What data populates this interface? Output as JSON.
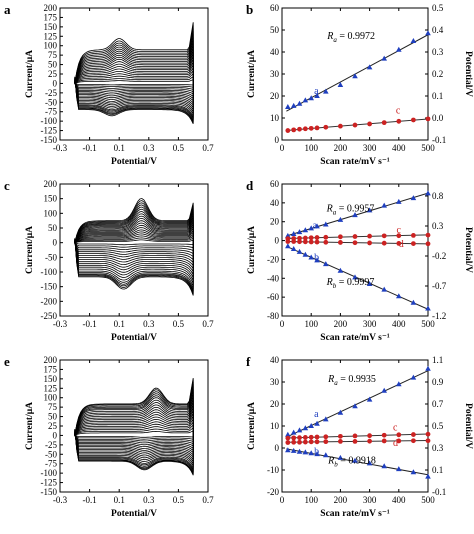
{
  "figure": {
    "colors": {
      "axis": "#000000",
      "blue": "#1f3fbf",
      "red": "#cc2222",
      "cv": "#000000"
    }
  },
  "chart_data": [
    {
      "id": "a",
      "panel_label": "a",
      "type": "line",
      "xlabel": "Potential/V",
      "ylabel": "Current/μA",
      "xlim": [
        -0.3,
        0.7
      ],
      "ylim": [
        -150,
        200
      ],
      "xticks": [
        "-0.3",
        "-0.1",
        "0.1",
        "0.3",
        "0.5",
        "0.7"
      ],
      "yticks": [
        "-150",
        "-125",
        "-100",
        "-75",
        "-50",
        "-25",
        "0",
        "25",
        "50",
        "75",
        "100",
        "125",
        "150",
        "175",
        "200"
      ],
      "curves": {
        "count": 20,
        "e_start": -0.2,
        "e_end": 0.6,
        "anodic_peak_E": 0.1,
        "cathodic_peak_E": 0.05,
        "top_max": [
          10,
          18,
          26,
          34,
          42,
          50,
          58,
          66,
          74,
          82,
          90,
          98,
          106,
          114,
          122,
          130,
          138,
          146,
          154,
          162
        ],
        "anodic_peak_height": [
          2,
          3,
          5,
          7,
          9,
          11,
          13,
          15,
          17,
          19,
          20,
          21,
          22,
          23,
          24,
          25,
          26,
          27,
          28,
          30
        ],
        "bottom_min": [
          -5,
          -12,
          -19,
          -26,
          -33,
          -40,
          -47,
          -54,
          -61,
          -68,
          -75,
          -82,
          -89,
          -96,
          -103,
          -108,
          -113,
          -118,
          -122,
          -126
        ]
      }
    },
    {
      "id": "b",
      "panel_label": "b",
      "type": "scatter",
      "xlabel": "Scan rate/mV s⁻¹",
      "ylabel": "Current/μA",
      "y2label": "Potential/V",
      "xlim": [
        0,
        500
      ],
      "ylim": [
        0,
        60
      ],
      "y2lim": [
        -0.1,
        0.5
      ],
      "xticks": [
        "0",
        "100",
        "200",
        "300",
        "400",
        "500"
      ],
      "yticks": [
        "0",
        "10",
        "20",
        "30",
        "40",
        "50",
        "60"
      ],
      "y2ticks": [
        "-0.1",
        "0.0",
        "0.1",
        "0.2",
        "0.3",
        "0.4",
        "0.5"
      ],
      "annotations": [
        {
          "text": "R",
          "sub": "a",
          "value": "= 0.9972"
        }
      ],
      "series_labels": [
        {
          "text": "a",
          "color": "#1f3fbf"
        },
        {
          "text": "c",
          "color": "#cc2222"
        }
      ],
      "series": [
        {
          "marker": "triangle",
          "color": "#1f3fbf",
          "axis": "left",
          "x": [
            20,
            40,
            60,
            80,
            100,
            120,
            150,
            200,
            250,
            300,
            350,
            400,
            450,
            500
          ],
          "y": [
            15,
            15.5,
            16.5,
            18,
            19,
            20,
            22,
            25,
            29,
            33,
            37,
            41,
            45,
            48.5
          ]
        },
        {
          "marker": "circle",
          "color": "#cc2222",
          "axis": "left",
          "x": [
            20,
            40,
            60,
            80,
            100,
            120,
            150,
            200,
            250,
            300,
            350,
            400,
            450,
            500
          ],
          "y": [
            4.3,
            4.6,
            4.9,
            5.1,
            5.3,
            5.5,
            5.8,
            6.3,
            6.8,
            7.3,
            7.9,
            8.5,
            9.1,
            9.6
          ]
        }
      ]
    },
    {
      "id": "c",
      "panel_label": "c",
      "type": "line",
      "xlabel": "Potential/V",
      "ylabel": "Current/μA",
      "xlim": [
        -0.3,
        0.7
      ],
      "ylim": [
        -250,
        200
      ],
      "xticks": [
        "-0.3",
        "-0.1",
        "0.1",
        "0.3",
        "0.5",
        "0.7"
      ],
      "yticks": [
        "-250",
        "-200",
        "-150",
        "-100",
        "-50",
        "0",
        "50",
        "100",
        "150",
        "200"
      ],
      "curves": {
        "count": 20,
        "e_start": -0.2,
        "e_end": 0.6,
        "anodic_peak_E": 0.25,
        "cathodic_peak_E": 0.13,
        "top_max": [
          8,
          15,
          22,
          29,
          36,
          43,
          50,
          57,
          64,
          71,
          78,
          85,
          92,
          99,
          106,
          112,
          118,
          124,
          130,
          136
        ],
        "anodic_peak_height": [
          5,
          8,
          11,
          14,
          17,
          20,
          24,
          28,
          32,
          36,
          40,
          44,
          48,
          52,
          56,
          60,
          64,
          68,
          72,
          76
        ],
        "bottom_min": [
          -8,
          -20,
          -32,
          -44,
          -56,
          -68,
          -80,
          -92,
          -104,
          -116,
          -128,
          -140,
          -152,
          -164,
          -176,
          -186,
          -194,
          -200,
          -206,
          -212
        ]
      }
    },
    {
      "id": "d",
      "panel_label": "d",
      "type": "scatter",
      "xlabel": "Scan rate/mV s⁻¹",
      "ylabel": "Current/μA",
      "y2label": "Potential/V",
      "xlim": [
        0,
        500
      ],
      "ylim": [
        -80,
        60
      ],
      "y2lim": [
        -1.2,
        1.0
      ],
      "xticks": [
        "0",
        "100",
        "200",
        "300",
        "400",
        "500"
      ],
      "yticks": [
        "-80",
        "-60",
        "-40",
        "-20",
        "0",
        "20",
        "40",
        "60"
      ],
      "y2ticks": [
        "-1.2",
        "-0.7",
        "-0.2",
        "0.3",
        "0.8"
      ],
      "annotations": [
        {
          "text": "R",
          "sub": "a",
          "value": "= 0.9957"
        },
        {
          "text": "R",
          "sub": "b",
          "value": "= 0.9997"
        }
      ],
      "series_labels": [
        {
          "text": "a",
          "color": "#1f3fbf"
        },
        {
          "text": "c",
          "color": "#cc2222"
        },
        {
          "text": "b",
          "color": "#1f3fbf"
        },
        {
          "text": "d",
          "color": "#cc2222"
        }
      ],
      "series": [
        {
          "marker": "triangle",
          "color": "#1f3fbf",
          "axis": "left",
          "x": [
            20,
            40,
            60,
            80,
            100,
            120,
            150,
            200,
            250,
            300,
            350,
            400,
            450,
            500
          ],
          "y": [
            5,
            7,
            9,
            11,
            13,
            15,
            17,
            22,
            27,
            32,
            37,
            41,
            45,
            50
          ]
        },
        {
          "marker": "circle",
          "color": "#cc2222",
          "axis": "left",
          "x": [
            20,
            40,
            60,
            80,
            100,
            120,
            150,
            200,
            250,
            300,
            350,
            400,
            450,
            500
          ],
          "y": [
            2,
            2.2,
            2.5,
            2.7,
            3,
            3.2,
            3.5,
            4,
            4.3,
            4.7,
            5,
            5.2,
            5.5,
            5.8
          ]
        },
        {
          "marker": "triangle",
          "color": "#1f3fbf",
          "axis": "left",
          "x": [
            20,
            40,
            60,
            80,
            100,
            120,
            150,
            200,
            250,
            300,
            350,
            400,
            450,
            500
          ],
          "y": [
            -6,
            -9,
            -12,
            -15,
            -18,
            -21,
            -25,
            -32,
            -39,
            -46,
            -52,
            -59,
            -66,
            -72
          ]
        },
        {
          "marker": "circle",
          "color": "#cc2222",
          "axis": "left",
          "x": [
            20,
            40,
            60,
            80,
            100,
            120,
            150,
            200,
            250,
            300,
            350,
            400,
            450,
            500
          ],
          "y": [
            -1,
            -1,
            -1.2,
            -1.3,
            -1.5,
            -1.6,
            -1.8,
            -2,
            -2.3,
            -2.5,
            -2.8,
            -3,
            -3.2,
            -3.4
          ]
        }
      ]
    },
    {
      "id": "e",
      "panel_label": "e",
      "type": "line",
      "xlabel": "Potential/V",
      "ylabel": "Current/μA",
      "xlim": [
        -0.3,
        0.7
      ],
      "ylim": [
        -150,
        200
      ],
      "xticks": [
        "-0.3",
        "-0.1",
        "0.1",
        "0.3",
        "0.5",
        "0.7"
      ],
      "yticks": [
        "-150",
        "-125",
        "-100",
        "-75",
        "-50",
        "-25",
        "0",
        "25",
        "50",
        "75",
        "100",
        "125",
        "150",
        "175",
        "200"
      ],
      "curves": {
        "count": 20,
        "e_start": -0.2,
        "e_end": 0.6,
        "anodic_peak_E": 0.35,
        "cathodic_peak_E": 0.27,
        "top_max": [
          12,
          20,
          28,
          36,
          44,
          52,
          60,
          68,
          76,
          84,
          92,
          100,
          108,
          116,
          124,
          130,
          136,
          142,
          148,
          152
        ],
        "anodic_peak_height": [
          4,
          6,
          8,
          10,
          12,
          14,
          16,
          18,
          20,
          22,
          24,
          26,
          28,
          30,
          32,
          34,
          36,
          38,
          40,
          42
        ],
        "bottom_min": [
          -5,
          -12,
          -19,
          -26,
          -33,
          -40,
          -47,
          -54,
          -61,
          -68,
          -75,
          -82,
          -89,
          -96,
          -103,
          -108,
          -113,
          -118,
          -121,
          -124
        ]
      }
    },
    {
      "id": "f",
      "panel_label": "f",
      "type": "scatter",
      "xlabel": "Scan rate/mV s⁻¹",
      "ylabel": "Current/μA",
      "y2label": "Potential/V",
      "xlim": [
        0,
        500
      ],
      "ylim": [
        -20,
        40
      ],
      "y2lim": [
        -0.1,
        1.1
      ],
      "xticks": [
        "0",
        "100",
        "200",
        "300",
        "400",
        "500"
      ],
      "yticks": [
        "-20",
        "-10",
        "0",
        "10",
        "20",
        "30",
        "40"
      ],
      "y2ticks": [
        "-0.1",
        "0.1",
        "0.3",
        "0.5",
        "0.7",
        "0.9",
        "1.1"
      ],
      "annotations": [
        {
          "text": "R",
          "sub": "a",
          "value": "= 0.9935"
        },
        {
          "text": "R",
          "sub": "b",
          "value": "= 0.9918"
        }
      ],
      "series_labels": [
        {
          "text": "a",
          "color": "#1f3fbf"
        },
        {
          "text": "c",
          "color": "#cc2222"
        },
        {
          "text": "d",
          "color": "#cc2222"
        },
        {
          "text": "b",
          "color": "#1f3fbf"
        }
      ],
      "series": [
        {
          "marker": "triangle",
          "color": "#1f3fbf",
          "axis": "left",
          "x": [
            20,
            40,
            60,
            80,
            100,
            120,
            150,
            200,
            250,
            300,
            350,
            400,
            450,
            500
          ],
          "y": [
            6,
            7,
            8,
            9,
            10,
            11,
            13,
            16,
            19,
            22,
            26,
            29,
            32,
            36
          ]
        },
        {
          "marker": "circle",
          "color": "#cc2222",
          "axis": "left",
          "x": [
            20,
            40,
            60,
            80,
            100,
            120,
            150,
            200,
            250,
            300,
            350,
            400,
            450,
            500
          ],
          "y": [
            4.5,
            4.6,
            4.7,
            4.8,
            4.9,
            5,
            5.1,
            5.3,
            5.5,
            5.6,
            5.8,
            6,
            6.1,
            6.3
          ]
        },
        {
          "marker": "circle",
          "color": "#cc2222",
          "axis": "left",
          "x": [
            20,
            40,
            60,
            80,
            100,
            120,
            150,
            200,
            250,
            300,
            350,
            400,
            450,
            500
          ],
          "y": [
            2.5,
            2.6,
            2.6,
            2.7,
            2.8,
            2.8,
            2.9,
            3,
            3,
            3.1,
            3.2,
            3.2,
            3.3,
            3.3
          ]
        },
        {
          "marker": "triangle",
          "color": "#1f3fbf",
          "axis": "left",
          "x": [
            20,
            40,
            60,
            80,
            100,
            120,
            150,
            200,
            250,
            300,
            350,
            400,
            450,
            500
          ],
          "y": [
            -1,
            -1.3,
            -1.7,
            -2,
            -2.4,
            -2.8,
            -3.3,
            -4.5,
            -5.8,
            -7,
            -8.3,
            -9.6,
            -11,
            -13
          ]
        }
      ]
    }
  ]
}
